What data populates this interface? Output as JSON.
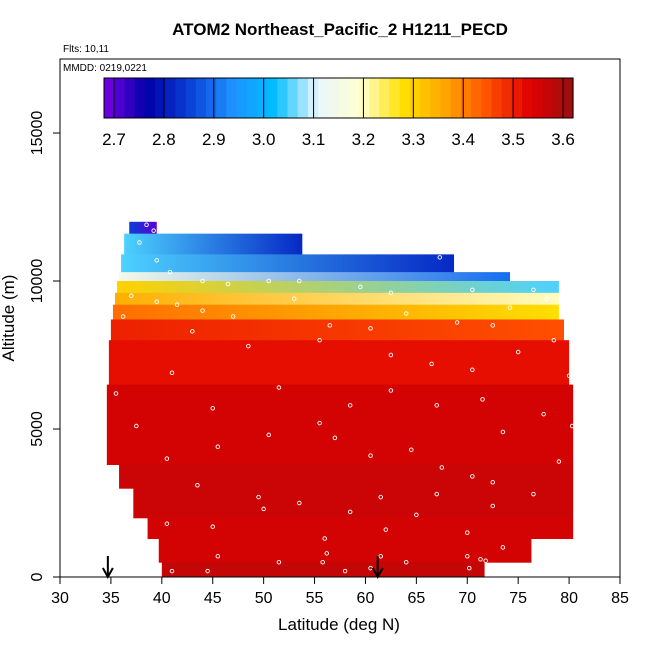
{
  "chart_data": {
    "type": "heatmap",
    "title": "ATOM2 Northeast_Pacific_2 H1211_PECD",
    "flights_note": "Flts: 10,11",
    "dates_note": "MMDD: 0219,0221",
    "xlabel": "Latitude (deg N)",
    "ylabel": "Altitude (m)",
    "xlim": [
      30,
      85
    ],
    "ylim": [
      0,
      17500
    ],
    "x_ticks": [
      "30",
      "35",
      "40",
      "45",
      "50",
      "55",
      "60",
      "65",
      "70",
      "75",
      "80",
      "85"
    ],
    "x_tick_values": [
      30,
      35,
      40,
      45,
      50,
      55,
      60,
      65,
      70,
      75,
      80,
      85
    ],
    "y_ticks": [
      "0",
      "5000",
      "10000",
      "15000"
    ],
    "y_tick_values": [
      0,
      5000,
      10000,
      15000
    ],
    "colorbar": {
      "range": [
        2.68,
        3.62
      ],
      "ticks": [
        "2.7",
        "2.8",
        "2.9",
        "3.0",
        "3.1",
        "3.2",
        "3.3",
        "3.4",
        "3.5",
        "3.6"
      ],
      "tick_values": [
        2.7,
        2.8,
        2.9,
        3.0,
        3.1,
        3.2,
        3.3,
        3.4,
        3.5,
        3.6
      ],
      "colors": [
        "#7a00e6",
        "#0000a8",
        "#0a3fd6",
        "#1e90ff",
        "#00bfff",
        "#e8f6ff",
        "#ffffd0",
        "#ffe000",
        "#ffa500",
        "#ff5000",
        "#e00000",
        "#9a1010"
      ]
    },
    "arrows_at_latitude": [
      34.7,
      61.2
    ],
    "field_layers": [
      {
        "alt_range": [
          11600,
          12000
        ],
        "lat_range": [
          36.8,
          39.5
        ],
        "value_start": 2.85,
        "value_end": 2.7
      },
      {
        "alt_range": [
          10900,
          11600
        ],
        "lat_range": [
          36.3,
          53.8
        ],
        "value_start": 3.05,
        "value_end": 2.82
      },
      {
        "alt_range": [
          10300,
          10900
        ],
        "lat_range": [
          36.0,
          68.7
        ],
        "value_start": 3.05,
        "value_end": 2.82
      },
      {
        "alt_range": [
          10000,
          10300
        ],
        "lat_range": [
          35.8,
          74.2
        ],
        "value_start": 3.15,
        "value_end": 2.9
      },
      {
        "alt_range": [
          9600,
          10000
        ],
        "lat_range": [
          35.6,
          79.0
        ],
        "value_start": 3.3,
        "value_end": 3.05
      },
      {
        "alt_range": [
          9200,
          9600
        ],
        "lat_range": [
          35.4,
          79.0
        ],
        "value_start": 3.35,
        "value_end": 3.2
      },
      {
        "alt_range": [
          8700,
          9200
        ],
        "lat_range": [
          35.2,
          79.0
        ],
        "value_start": 3.42,
        "value_end": 3.28
      },
      {
        "alt_range": [
          8000,
          8700
        ],
        "lat_range": [
          35.0,
          79.5
        ],
        "value_start": 3.5,
        "value_end": 3.45
      },
      {
        "alt_range": [
          6500,
          8000
        ],
        "lat_range": [
          34.8,
          80.0
        ],
        "value_start": 3.52,
        "value_end": 3.52
      },
      {
        "alt_range": [
          3800,
          6500
        ],
        "lat_range": [
          34.6,
          80.4
        ],
        "value_start": 3.55,
        "value_end": 3.55
      },
      {
        "alt_range": [
          3000,
          3800
        ],
        "lat_range": [
          35.8,
          80.4
        ],
        "value_start": 3.56,
        "value_end": 3.56
      },
      {
        "alt_range": [
          2000,
          3000
        ],
        "lat_range": [
          37.2,
          80.4
        ],
        "value_start": 3.56,
        "value_end": 3.56
      },
      {
        "alt_range": [
          1300,
          2000
        ],
        "lat_range": [
          38.6,
          80.4
        ],
        "value_start": 3.55,
        "value_end": 3.55
      },
      {
        "alt_range": [
          500,
          1300
        ],
        "lat_range": [
          39.7,
          76.3
        ],
        "value_start": 3.55,
        "value_end": 3.55
      },
      {
        "alt_range": [
          0,
          500
        ],
        "lat_range": [
          40.0,
          71.7
        ],
        "value_start": 3.57,
        "value_end": 3.57
      }
    ],
    "samples": [
      [
        38.5,
        11900
      ],
      [
        39.2,
        11700
      ],
      [
        37.8,
        11300
      ],
      [
        39.5,
        10700
      ],
      [
        40.8,
        10300
      ],
      [
        44.0,
        10000
      ],
      [
        46.5,
        9900
      ],
      [
        50.5,
        10000
      ],
      [
        53.5,
        10000
      ],
      [
        59.5,
        9800
      ],
      [
        62.5,
        9600
      ],
      [
        67.3,
        10800
      ],
      [
        70.5,
        9700
      ],
      [
        74.2,
        9100
      ],
      [
        77.8,
        9400
      ],
      [
        76.5,
        9700
      ],
      [
        37.0,
        9500
      ],
      [
        39.5,
        9300
      ],
      [
        41.5,
        9200
      ],
      [
        44.0,
        9000
      ],
      [
        47.0,
        8800
      ],
      [
        53.0,
        9400
      ],
      [
        56.5,
        8500
      ],
      [
        60.5,
        8400
      ],
      [
        64.0,
        8900
      ],
      [
        69.0,
        8600
      ],
      [
        72.5,
        8500
      ],
      [
        78.5,
        8000
      ],
      [
        36.2,
        8800
      ],
      [
        43.0,
        8300
      ],
      [
        48.5,
        7800
      ],
      [
        55.5,
        8000
      ],
      [
        62.5,
        7500
      ],
      [
        66.5,
        7200
      ],
      [
        70.5,
        7000
      ],
      [
        75.0,
        7600
      ],
      [
        80.0,
        6800
      ],
      [
        35.5,
        6200
      ],
      [
        41.0,
        6900
      ],
      [
        45.0,
        5700
      ],
      [
        51.5,
        6400
      ],
      [
        55.5,
        5200
      ],
      [
        58.5,
        5800
      ],
      [
        62.5,
        6300
      ],
      [
        67.0,
        5800
      ],
      [
        71.5,
        6000
      ],
      [
        73.5,
        4900
      ],
      [
        77.5,
        5500
      ],
      [
        80.3,
        5100
      ],
      [
        37.5,
        5100
      ],
      [
        40.5,
        4000
      ],
      [
        45.5,
        4400
      ],
      [
        50.5,
        4800
      ],
      [
        57.0,
        4700
      ],
      [
        60.5,
        4100
      ],
      [
        64.5,
        4300
      ],
      [
        67.5,
        3700
      ],
      [
        70.5,
        3400
      ],
      [
        72.5,
        3200
      ],
      [
        79.0,
        3900
      ],
      [
        35.0,
        3700
      ],
      [
        43.5,
        3100
      ],
      [
        49.5,
        2700
      ],
      [
        53.5,
        2500
      ],
      [
        58.5,
        2200
      ],
      [
        61.5,
        2700
      ],
      [
        67.0,
        2800
      ],
      [
        72.5,
        2400
      ],
      [
        76.5,
        2800
      ],
      [
        40.5,
        1800
      ],
      [
        45.0,
        1700
      ],
      [
        50.0,
        2300
      ],
      [
        56.0,
        1300
      ],
      [
        62.0,
        1600
      ],
      [
        65.0,
        2100
      ],
      [
        70.0,
        1500
      ],
      [
        73.5,
        1000
      ],
      [
        80.2,
        1000
      ],
      [
        41.0,
        200
      ],
      [
        44.5,
        200
      ],
      [
        45.5,
        700
      ],
      [
        51.5,
        500
      ],
      [
        55.8,
        500
      ],
      [
        56.2,
        800
      ],
      [
        58.0,
        200
      ],
      [
        60.5,
        300
      ],
      [
        61.5,
        700
      ],
      [
        64.0,
        500
      ],
      [
        70.0,
        700
      ],
      [
        70.2,
        300
      ],
      [
        71.3,
        600
      ],
      [
        71.8,
        550
      ]
    ]
  }
}
